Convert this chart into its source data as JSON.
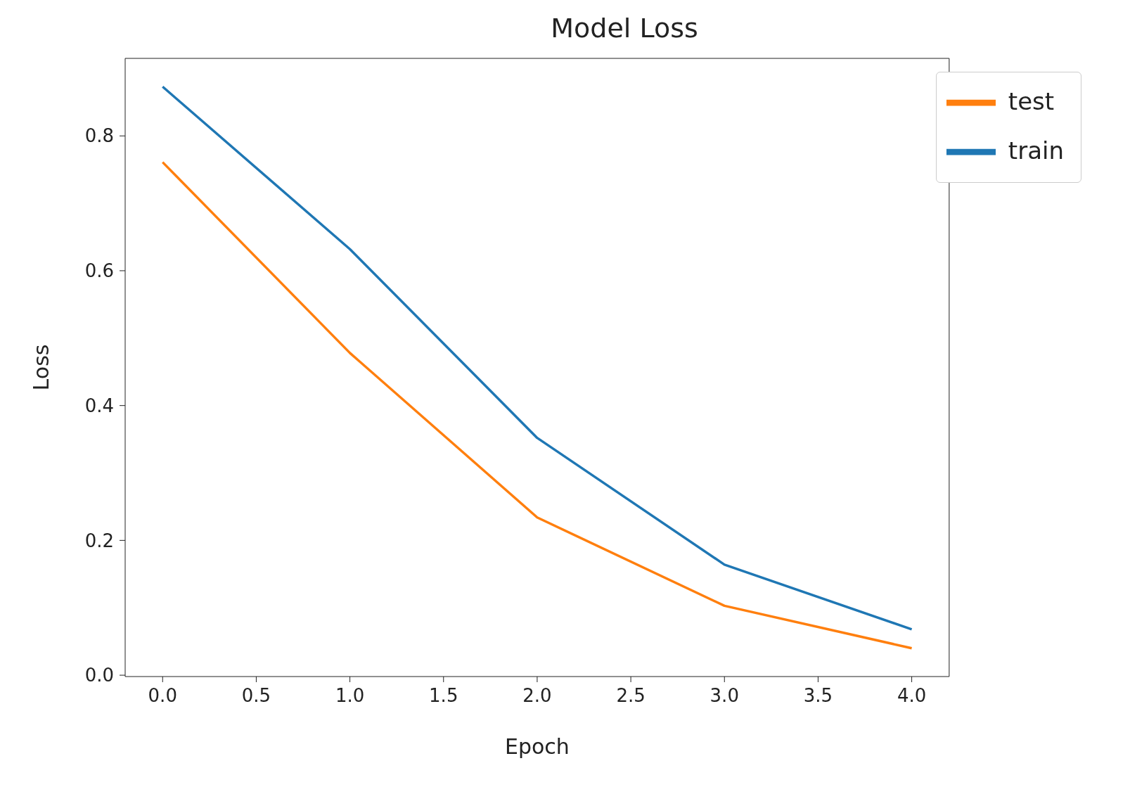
{
  "chart_data": {
    "type": "line",
    "title": "Model Loss",
    "xlabel": "Epoch",
    "ylabel": "Loss",
    "x": [
      0,
      1,
      2,
      3,
      4
    ],
    "series": [
      {
        "name": "train",
        "color": "#1f77b4",
        "values": [
          0.873,
          0.632,
          0.352,
          0.164,
          0.068
        ]
      },
      {
        "name": "test",
        "color": "#ff7f0e",
        "values": [
          0.761,
          0.478,
          0.234,
          0.103,
          0.04
        ]
      }
    ],
    "xlim": [
      -0.2,
      4.2
    ],
    "xticks": [
      {
        "value": 0,
        "label": "0.0"
      },
      {
        "value": 0.5,
        "label": "0.5"
      },
      {
        "value": 1,
        "label": "1.0"
      },
      {
        "value": 1.5,
        "label": "1.5"
      },
      {
        "value": 2,
        "label": "2.0"
      },
      {
        "value": 2.5,
        "label": "2.5"
      },
      {
        "value": 3,
        "label": "3.0"
      },
      {
        "value": 3.5,
        "label": "3.5"
      },
      {
        "value": 4,
        "label": "4.0"
      }
    ],
    "ylim": [
      -0.002,
      0.915
    ],
    "yticks": [
      {
        "value": 0,
        "label": "0.0"
      },
      {
        "value": 0.2,
        "label": "0.2"
      },
      {
        "value": 0.4,
        "label": "0.4"
      },
      {
        "value": 0.6,
        "label": "0.6"
      },
      {
        "value": 0.8,
        "label": "0.8"
      }
    ],
    "grid": false,
    "legend": "top right",
    "marker": "none",
    "line_style": "solid"
  }
}
